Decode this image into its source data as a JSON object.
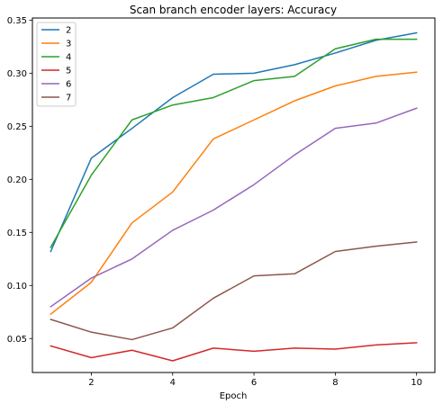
{
  "chart_data": {
    "type": "line",
    "title": "Scan branch encoder layers: Accuracy",
    "xlabel": "Epoch",
    "ylabel": "",
    "x": [
      1,
      2,
      3,
      4,
      5,
      6,
      7,
      8,
      9,
      10
    ],
    "xlim": [
      0.55,
      10.45
    ],
    "ylim": [
      0.018,
      0.352
    ],
    "xticks": [
      "2",
      "4",
      "6",
      "8",
      "10"
    ],
    "yticks": [
      "0.05",
      "0.10",
      "0.15",
      "0.20",
      "0.25",
      "0.30",
      "0.35"
    ],
    "grid": false,
    "legend_position": "top-left",
    "series": [
      {
        "name": "2",
        "color": "#1f77b4",
        "values": [
          0.132,
          0.22,
          0.248,
          0.277,
          0.299,
          0.3,
          0.308,
          0.319,
          0.331,
          0.338
        ]
      },
      {
        "name": "3",
        "color": "#ff7f0e",
        "values": [
          0.073,
          0.103,
          0.159,
          0.188,
          0.238,
          0.256,
          0.274,
          0.288,
          0.297,
          0.301
        ]
      },
      {
        "name": "4",
        "color": "#2ca02c",
        "values": [
          0.136,
          0.204,
          0.256,
          0.27,
          0.277,
          0.293,
          0.297,
          0.323,
          0.332,
          0.332
        ]
      },
      {
        "name": "5",
        "color": "#d62728",
        "values": [
          0.043,
          0.032,
          0.039,
          0.029,
          0.041,
          0.038,
          0.041,
          0.04,
          0.044,
          0.046
        ]
      },
      {
        "name": "6",
        "color": "#9467bd",
        "values": [
          0.08,
          0.107,
          0.125,
          0.152,
          0.171,
          0.195,
          0.223,
          0.248,
          0.253,
          0.267
        ]
      },
      {
        "name": "7",
        "color": "#8c564b",
        "values": [
          0.068,
          0.056,
          0.049,
          0.06,
          0.088,
          0.109,
          0.111,
          0.132,
          0.137,
          0.141
        ]
      }
    ]
  }
}
